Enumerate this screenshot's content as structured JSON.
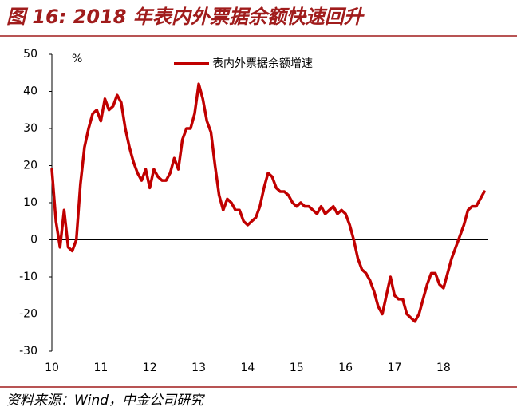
{
  "chart_data": {
    "type": "line",
    "title": "图 16: 2018 年表内外票据余额快速回升",
    "source": "资料来源：Wind，中金公司研究",
    "y_unit": "%",
    "categories": [
      "10",
      null,
      null,
      null,
      null,
      null,
      null,
      null,
      null,
      null,
      null,
      null,
      "11",
      null,
      null,
      null,
      null,
      null,
      null,
      null,
      null,
      null,
      null,
      null,
      "12",
      null,
      null,
      null,
      null,
      null,
      null,
      null,
      null,
      null,
      null,
      null,
      "13",
      null,
      null,
      null,
      null,
      null,
      null,
      null,
      null,
      null,
      null,
      null,
      "14",
      null,
      null,
      null,
      null,
      null,
      null,
      null,
      null,
      null,
      null,
      null,
      "15",
      null,
      null,
      null,
      null,
      null,
      null,
      null,
      null,
      null,
      null,
      null,
      "16",
      null,
      null,
      null,
      null,
      null,
      null,
      null,
      null,
      null,
      null,
      null,
      "17",
      null,
      null,
      null,
      null,
      null,
      null,
      null,
      null,
      null,
      null,
      null,
      "18",
      null,
      null,
      null,
      null,
      null,
      null,
      null,
      null,
      null,
      null
    ],
    "series": [
      {
        "name": "表内外票据余额增速",
        "color": "#c00000",
        "values": [
          19,
          5,
          -2,
          8,
          -2,
          -3,
          0,
          15,
          25,
          30,
          34,
          35,
          32,
          38,
          35,
          36,
          39,
          37,
          30,
          25,
          21,
          18,
          16,
          19,
          14,
          19,
          17,
          16,
          16,
          18,
          22,
          19,
          27,
          30,
          30,
          34,
          42,
          38,
          32,
          29,
          20,
          12,
          8,
          11,
          10,
          8,
          8,
          5,
          4,
          5,
          6,
          9,
          14,
          18,
          17,
          14,
          13,
          13,
          12,
          10,
          9,
          10,
          9,
          9,
          8,
          7,
          9,
          7,
          8,
          9,
          7,
          8,
          7,
          4,
          0,
          -5,
          -8,
          -9,
          -11,
          -14,
          -18,
          -20,
          -15,
          -10,
          -15,
          -16,
          -16,
          -20,
          -21,
          -22,
          -20,
          -16,
          -12,
          -9,
          -9,
          -12,
          -13,
          -9,
          -5,
          -2,
          1,
          4,
          8,
          9,
          9,
          11,
          13
        ]
      }
    ],
    "ylim": [
      -30,
      50
    ],
    "yticks": [
      -30,
      -20,
      -10,
      0,
      10,
      20,
      30,
      40,
      50
    ],
    "grid": false
  }
}
